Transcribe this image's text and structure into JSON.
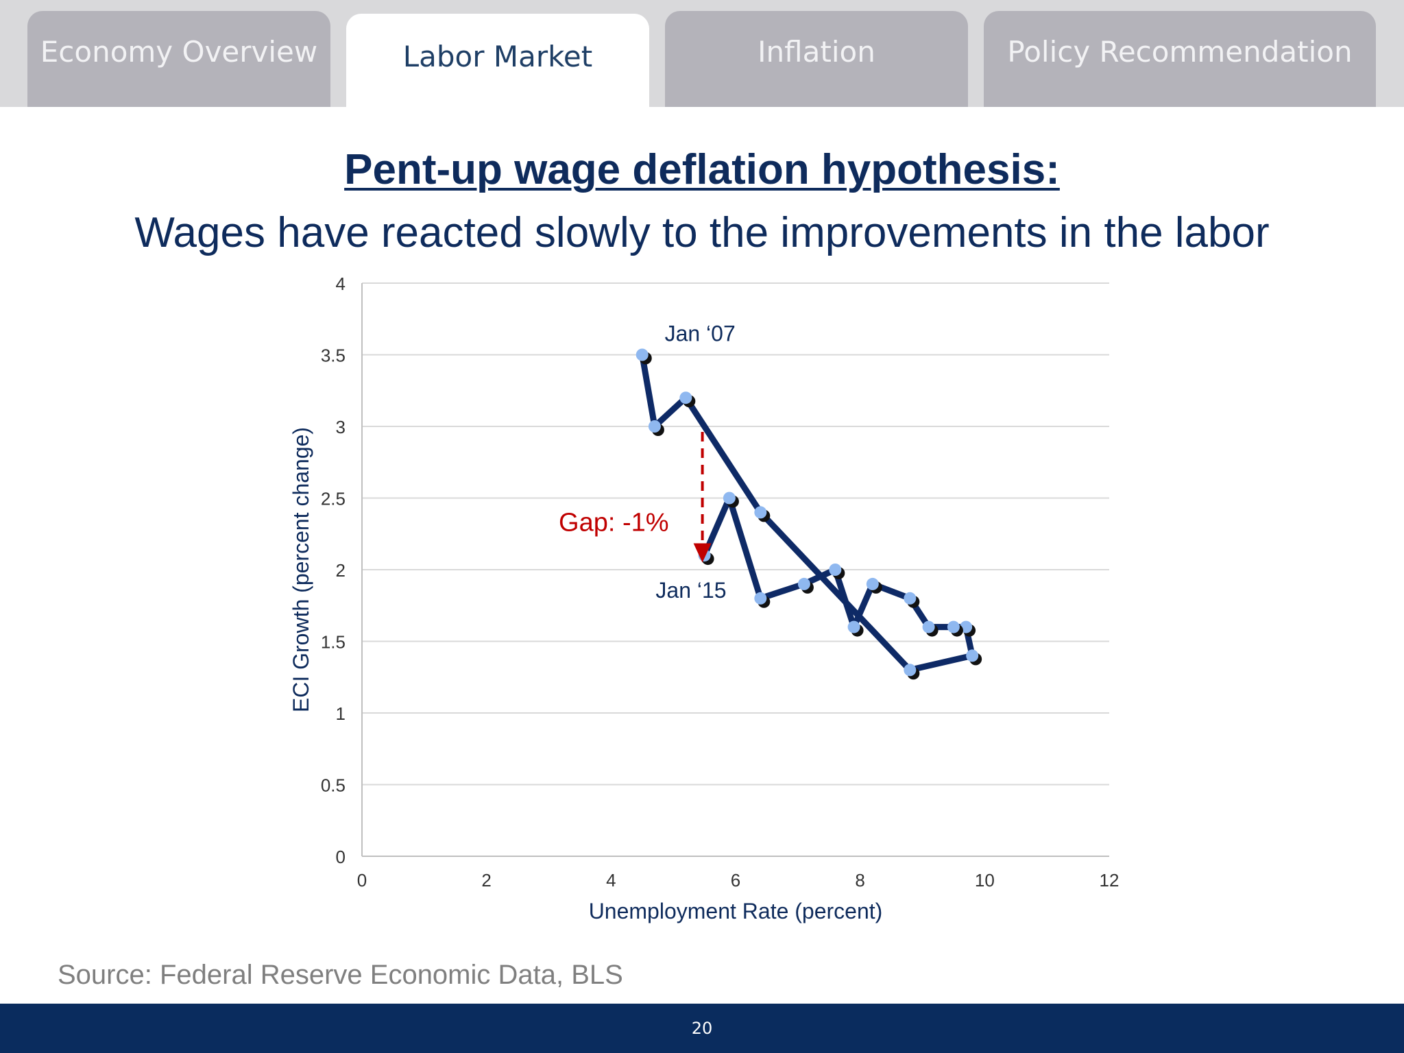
{
  "tabs": [
    {
      "label": "Economy Overview",
      "active": false
    },
    {
      "label": "Labor Market",
      "active": true
    },
    {
      "label": "Inflation",
      "active": false
    },
    {
      "label": "Policy Recommendation",
      "active": false
    }
  ],
  "slide": {
    "title": "Pent-up wage deflation hypothesis:",
    "subtitle": "Wages have reacted slowly to the improvements in the labor",
    "source": "Source: Federal Reserve Economic Data, BLS",
    "page_number": "20"
  },
  "colors": {
    "line": "#0e2a66",
    "marker": "#8fb8f0",
    "marker_shadow": "#111111",
    "gap_arrow": "#c00000",
    "text": "#0e2b5c"
  },
  "chart_data": {
    "type": "line",
    "xlabel": "Unemployment Rate (percent)",
    "ylabel": "ECI Growth (percent change)",
    "xlim": [
      0,
      12
    ],
    "ylim": [
      0,
      4
    ],
    "x_ticks": [
      "0",
      "2",
      "4",
      "6",
      "8",
      "10",
      "12"
    ],
    "y_ticks": [
      "0",
      "0.5",
      "1",
      "1.5",
      "2",
      "2.5",
      "3",
      "3.5",
      "4"
    ],
    "grid": "horizontal",
    "points": [
      {
        "x": 4.5,
        "y": 3.5
      },
      {
        "x": 4.7,
        "y": 3.0
      },
      {
        "x": 5.2,
        "y": 3.2
      },
      {
        "x": 6.4,
        "y": 2.4
      },
      {
        "x": 8.8,
        "y": 1.3
      },
      {
        "x": 9.8,
        "y": 1.4
      },
      {
        "x": 9.7,
        "y": 1.6
      },
      {
        "x": 9.5,
        "y": 1.6
      },
      {
        "x": 9.1,
        "y": 1.6
      },
      {
        "x": 8.8,
        "y": 1.8
      },
      {
        "x": 8.2,
        "y": 1.9
      },
      {
        "x": 7.9,
        "y": 1.6
      },
      {
        "x": 7.6,
        "y": 2.0
      },
      {
        "x": 7.1,
        "y": 1.9
      },
      {
        "x": 6.4,
        "y": 1.8
      },
      {
        "x": 5.9,
        "y": 2.5
      },
      {
        "x": 5.5,
        "y": 2.1
      }
    ],
    "annotations": [
      {
        "text": "Jan ‘07",
        "x": 4.5,
        "y": 3.5
      },
      {
        "text": "Jan ‘15",
        "x": 5.5,
        "y": 2.1
      },
      {
        "text": "Gap: -1%",
        "x": 5.5,
        "y": 2.3
      }
    ],
    "gap_arrow": {
      "x": 5.5,
      "y_from": 3.0,
      "y_to": 2.05
    }
  }
}
